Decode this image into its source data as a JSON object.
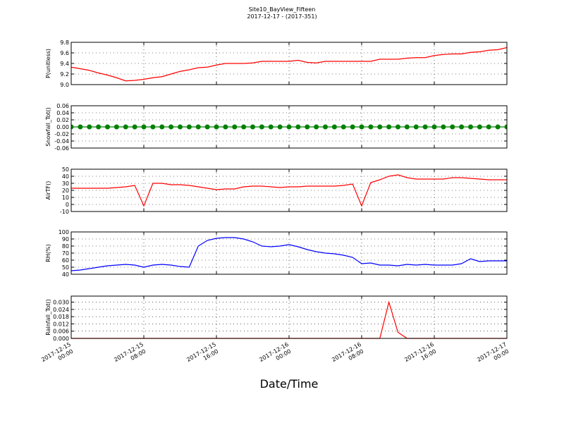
{
  "title": "Site10_BayView_Fifteen",
  "subtitle": "2017-12-17 - (2017-351)",
  "xlabel": "Date/Time",
  "chart_data": [
    {
      "type": "line",
      "ylabel": "P(unitless)",
      "x": [
        "2017-12-15 00:00",
        "2017-12-15 01:00",
        "2017-12-15 02:00",
        "2017-12-15 03:00",
        "2017-12-15 04:00",
        "2017-12-15 05:00",
        "2017-12-15 06:00",
        "2017-12-15 07:00",
        "2017-12-15 08:00",
        "2017-12-15 09:00",
        "2017-12-15 10:00",
        "2017-12-15 11:00",
        "2017-12-15 12:00",
        "2017-12-15 13:00",
        "2017-12-15 14:00",
        "2017-12-15 15:00",
        "2017-12-15 16:00",
        "2017-12-15 17:00",
        "2017-12-15 18:00",
        "2017-12-15 19:00",
        "2017-12-15 20:00",
        "2017-12-15 21:00",
        "2017-12-15 22:00",
        "2017-12-15 23:00",
        "2017-12-16 00:00",
        "2017-12-16 01:00",
        "2017-12-16 02:00",
        "2017-12-16 03:00",
        "2017-12-16 04:00",
        "2017-12-16 05:00",
        "2017-12-16 06:00",
        "2017-12-16 07:00",
        "2017-12-16 08:00",
        "2017-12-16 09:00",
        "2017-12-16 10:00",
        "2017-12-16 11:00",
        "2017-12-16 12:00",
        "2017-12-16 13:00",
        "2017-12-16 14:00",
        "2017-12-16 15:00",
        "2017-12-16 16:00",
        "2017-12-16 17:00",
        "2017-12-16 18:00",
        "2017-12-16 19:00",
        "2017-12-16 20:00",
        "2017-12-16 21:00",
        "2017-12-16 22:00",
        "2017-12-16 23:00",
        "2017-12-17 00:00"
      ],
      "series": [
        {
          "color": "#ff0000",
          "values": [
            9.33,
            9.3,
            9.27,
            9.22,
            9.18,
            9.13,
            9.07,
            9.08,
            9.1,
            9.13,
            9.15,
            9.2,
            9.25,
            9.28,
            9.32,
            9.33,
            9.37,
            9.4,
            9.4,
            9.4,
            9.41,
            9.44,
            9.44,
            9.44,
            9.44,
            9.46,
            9.42,
            9.41,
            9.44,
            9.44,
            9.44,
            9.44,
            9.44,
            9.44,
            9.48,
            9.48,
            9.48,
            9.5,
            9.51,
            9.51,
            9.55,
            9.57,
            9.58,
            9.58,
            9.61,
            9.62,
            9.65,
            9.66,
            9.7
          ]
        }
      ],
      "ylim": [
        9.0,
        9.8
      ],
      "yticks": [
        {
          "value": 9.0,
          "label": "9.0"
        },
        9.2,
        9.4,
        9.6,
        9.8
      ],
      "xlim": [
        "2017-12-15 00:00",
        "2017-12-17 00:00"
      ],
      "xticks": [
        "2017-12-15 00:00",
        "2017-12-15 08:00",
        "2017-12-15 16:00",
        "2017-12-16 00:00",
        "2017-12-16 08:00",
        "2017-12-16 16:00",
        "2017-12-17 00:00"
      ],
      "grid": true
    },
    {
      "type": "line",
      "ylabel": "Snowfall_Tot()",
      "x": [
        "2017-12-15 00:00",
        "2017-12-15 01:00",
        "2017-12-15 02:00",
        "2017-12-15 03:00",
        "2017-12-15 04:00",
        "2017-12-15 05:00",
        "2017-12-15 06:00",
        "2017-12-15 07:00",
        "2017-12-15 08:00",
        "2017-12-15 09:00",
        "2017-12-15 10:00",
        "2017-12-15 11:00",
        "2017-12-15 12:00",
        "2017-12-15 13:00",
        "2017-12-15 14:00",
        "2017-12-15 15:00",
        "2017-12-15 16:00",
        "2017-12-15 17:00",
        "2017-12-15 18:00",
        "2017-12-15 19:00",
        "2017-12-15 20:00",
        "2017-12-15 21:00",
        "2017-12-15 22:00",
        "2017-12-15 23:00",
        "2017-12-16 00:00",
        "2017-12-16 01:00",
        "2017-12-16 02:00",
        "2017-12-16 03:00",
        "2017-12-16 04:00",
        "2017-12-16 05:00",
        "2017-12-16 06:00",
        "2017-12-16 07:00",
        "2017-12-16 08:00",
        "2017-12-16 09:00",
        "2017-12-16 10:00",
        "2017-12-16 11:00",
        "2017-12-16 12:00",
        "2017-12-16 13:00",
        "2017-12-16 14:00",
        "2017-12-16 15:00",
        "2017-12-16 16:00",
        "2017-12-16 17:00",
        "2017-12-16 18:00",
        "2017-12-16 19:00",
        "2017-12-16 20:00",
        "2017-12-16 21:00",
        "2017-12-16 22:00",
        "2017-12-16 23:00",
        "2017-12-17 00:00"
      ],
      "series": [
        {
          "color": "#008000",
          "values": [
            0,
            0,
            0,
            0,
            0,
            0,
            0,
            0,
            0,
            0,
            0,
            0,
            0,
            0,
            0,
            0,
            0,
            0,
            0,
            0,
            0,
            0,
            0,
            0,
            0,
            0,
            0,
            0,
            0,
            0,
            0,
            0,
            0,
            0,
            0,
            0,
            0,
            0,
            0,
            0,
            0,
            0,
            0,
            0,
            0,
            0,
            0,
            0,
            0
          ]
        }
      ],
      "marker": true,
      "ylim": [
        -0.06,
        0.06
      ],
      "yticks": [
        -0.06,
        -0.04,
        -0.02,
        {
          "value": 0,
          "label": "0.00"
        },
        0.02,
        0.04,
        0.06
      ],
      "xlim": [
        "2017-12-15 00:00",
        "2017-12-17 00:00"
      ],
      "xticks": [
        "2017-12-15 00:00",
        "2017-12-15 08:00",
        "2017-12-15 16:00",
        "2017-12-16 00:00",
        "2017-12-16 08:00",
        "2017-12-16 16:00",
        "2017-12-17 00:00"
      ],
      "grid": true
    },
    {
      "type": "line",
      "ylabel": "AirTF()",
      "x": [
        "2017-12-15 00:00",
        "2017-12-15 01:00",
        "2017-12-15 02:00",
        "2017-12-15 03:00",
        "2017-12-15 04:00",
        "2017-12-15 05:00",
        "2017-12-15 06:00",
        "2017-12-15 07:00",
        "2017-12-15 08:00",
        "2017-12-15 09:00",
        "2017-12-15 10:00",
        "2017-12-15 11:00",
        "2017-12-15 12:00",
        "2017-12-15 13:00",
        "2017-12-15 14:00",
        "2017-12-15 15:00",
        "2017-12-15 16:00",
        "2017-12-15 17:00",
        "2017-12-15 18:00",
        "2017-12-15 19:00",
        "2017-12-15 20:00",
        "2017-12-15 21:00",
        "2017-12-15 22:00",
        "2017-12-15 23:00",
        "2017-12-16 00:00",
        "2017-12-16 01:00",
        "2017-12-16 02:00",
        "2017-12-16 03:00",
        "2017-12-16 04:00",
        "2017-12-16 05:00",
        "2017-12-16 06:00",
        "2017-12-16 07:00",
        "2017-12-16 08:00",
        "2017-12-16 09:00",
        "2017-12-16 10:00",
        "2017-12-16 11:00",
        "2017-12-16 12:00",
        "2017-12-16 13:00",
        "2017-12-16 14:00",
        "2017-12-16 15:00",
        "2017-12-16 16:00",
        "2017-12-16 17:00",
        "2017-12-16 18:00",
        "2017-12-16 19:00",
        "2017-12-16 20:00",
        "2017-12-16 21:00",
        "2017-12-16 22:00",
        "2017-12-16 23:00",
        "2017-12-17 00:00"
      ],
      "series": [
        {
          "color": "#ff0000",
          "values": [
            23,
            23,
            23,
            23,
            23,
            24,
            25,
            27,
            -2,
            30,
            30,
            28,
            28,
            27,
            25,
            23,
            21,
            22,
            22,
            25,
            26,
            26,
            25,
            24,
            25,
            25,
            26,
            26,
            26,
            26,
            27,
            29,
            -2,
            31,
            35,
            40,
            42,
            38,
            36,
            36,
            36,
            36,
            38,
            38,
            37,
            36,
            35,
            35,
            35
          ]
        }
      ],
      "ylim": [
        -10,
        50
      ],
      "yticks": [
        -10,
        0,
        10,
        20,
        30,
        40,
        50
      ],
      "xlim": [
        "2017-12-15 00:00",
        "2017-12-17 00:00"
      ],
      "xticks": [
        "2017-12-15 00:00",
        "2017-12-15 08:00",
        "2017-12-15 16:00",
        "2017-12-16 00:00",
        "2017-12-16 08:00",
        "2017-12-16 16:00",
        "2017-12-17 00:00"
      ],
      "grid": true
    },
    {
      "type": "line",
      "ylabel": "RH(%)",
      "x": [
        "2017-12-15 00:00",
        "2017-12-15 01:00",
        "2017-12-15 02:00",
        "2017-12-15 03:00",
        "2017-12-15 04:00",
        "2017-12-15 05:00",
        "2017-12-15 06:00",
        "2017-12-15 07:00",
        "2017-12-15 08:00",
        "2017-12-15 09:00",
        "2017-12-15 10:00",
        "2017-12-15 11:00",
        "2017-12-15 12:00",
        "2017-12-15 13:00",
        "2017-12-15 14:00",
        "2017-12-15 15:00",
        "2017-12-15 16:00",
        "2017-12-15 17:00",
        "2017-12-15 18:00",
        "2017-12-15 19:00",
        "2017-12-15 20:00",
        "2017-12-15 21:00",
        "2017-12-15 22:00",
        "2017-12-15 23:00",
        "2017-12-16 00:00",
        "2017-12-16 01:00",
        "2017-12-16 02:00",
        "2017-12-16 03:00",
        "2017-12-16 04:00",
        "2017-12-16 05:00",
        "2017-12-16 06:00",
        "2017-12-16 07:00",
        "2017-12-16 08:00",
        "2017-12-16 09:00",
        "2017-12-16 10:00",
        "2017-12-16 11:00",
        "2017-12-16 12:00",
        "2017-12-16 13:00",
        "2017-12-16 14:00",
        "2017-12-16 15:00",
        "2017-12-16 16:00",
        "2017-12-16 17:00",
        "2017-12-16 18:00",
        "2017-12-16 19:00",
        "2017-12-16 20:00",
        "2017-12-16 21:00",
        "2017-12-16 22:00",
        "2017-12-16 23:00",
        "2017-12-17 00:00"
      ],
      "series": [
        {
          "color": "#0000ff",
          "values": [
            45,
            46,
            48,
            50,
            52,
            53,
            54,
            53,
            50,
            53,
            54,
            53,
            51,
            50,
            80,
            88,
            91,
            92,
            92,
            90,
            86,
            80,
            79,
            80,
            82,
            79,
            75,
            72,
            70,
            69,
            67,
            64,
            55,
            56,
            53,
            53,
            52,
            54,
            53,
            54,
            53,
            53,
            53,
            55,
            62,
            58,
            59,
            59,
            59
          ]
        }
      ],
      "ylim": [
        40,
        100
      ],
      "yticks": [
        40,
        50,
        60,
        70,
        80,
        90,
        100
      ],
      "xlim": [
        "2017-12-15 00:00",
        "2017-12-17 00:00"
      ],
      "xticks": [
        "2017-12-15 00:00",
        "2017-12-15 08:00",
        "2017-12-15 16:00",
        "2017-12-16 00:00",
        "2017-12-16 08:00",
        "2017-12-16 16:00",
        "2017-12-17 00:00"
      ],
      "grid": true
    },
    {
      "type": "line",
      "ylabel": "Rainfall_Tot()",
      "x": [
        "2017-12-15 00:00",
        "2017-12-15 01:00",
        "2017-12-15 02:00",
        "2017-12-15 03:00",
        "2017-12-15 04:00",
        "2017-12-15 05:00",
        "2017-12-15 06:00",
        "2017-12-15 07:00",
        "2017-12-15 08:00",
        "2017-12-15 09:00",
        "2017-12-15 10:00",
        "2017-12-15 11:00",
        "2017-12-15 12:00",
        "2017-12-15 13:00",
        "2017-12-15 14:00",
        "2017-12-15 15:00",
        "2017-12-15 16:00",
        "2017-12-15 17:00",
        "2017-12-15 18:00",
        "2017-12-15 19:00",
        "2017-12-15 20:00",
        "2017-12-15 21:00",
        "2017-12-15 22:00",
        "2017-12-15 23:00",
        "2017-12-16 00:00",
        "2017-12-16 01:00",
        "2017-12-16 02:00",
        "2017-12-16 03:00",
        "2017-12-16 04:00",
        "2017-12-16 05:00",
        "2017-12-16 06:00",
        "2017-12-16 07:00",
        "2017-12-16 08:00",
        "2017-12-16 09:00",
        "2017-12-16 10:00",
        "2017-12-16 11:00",
        "2017-12-16 12:00",
        "2017-12-16 13:00",
        "2017-12-16 14:00",
        "2017-12-16 15:00",
        "2017-12-16 16:00",
        "2017-12-16 17:00",
        "2017-12-16 18:00",
        "2017-12-16 19:00",
        "2017-12-16 20:00",
        "2017-12-16 21:00",
        "2017-12-16 22:00",
        "2017-12-16 23:00",
        "2017-12-17 00:00"
      ],
      "series": [
        {
          "color": "#ff0000",
          "values": [
            0,
            0,
            0,
            0,
            0,
            0,
            0,
            0,
            0,
            0,
            0,
            0,
            0,
            0,
            0,
            0,
            0,
            0,
            0,
            0,
            0,
            0,
            0,
            0,
            0,
            0,
            0,
            0,
            0,
            0,
            0,
            0,
            0,
            0,
            0,
            0.03,
            0.005,
            0,
            0,
            0,
            0,
            0,
            0,
            0,
            0,
            0,
            0,
            0,
            0
          ]
        }
      ],
      "ylim": [
        0,
        0.035
      ],
      "yticks": [
        {
          "value": 0,
          "label": "0.000"
        },
        0.006,
        0.012,
        0.018,
        0.024,
        {
          "value": 0.03,
          "label": "0.030"
        }
      ],
      "xlim": [
        "2017-12-15 00:00",
        "2017-12-17 00:00"
      ],
      "xticks": [
        "2017-12-15 00:00",
        "2017-12-15 08:00",
        "2017-12-15 16:00",
        "2017-12-16 00:00",
        "2017-12-16 08:00",
        "2017-12-16 16:00",
        "2017-12-17 00:00"
      ],
      "grid": true,
      "xtick_labels": true
    }
  ]
}
